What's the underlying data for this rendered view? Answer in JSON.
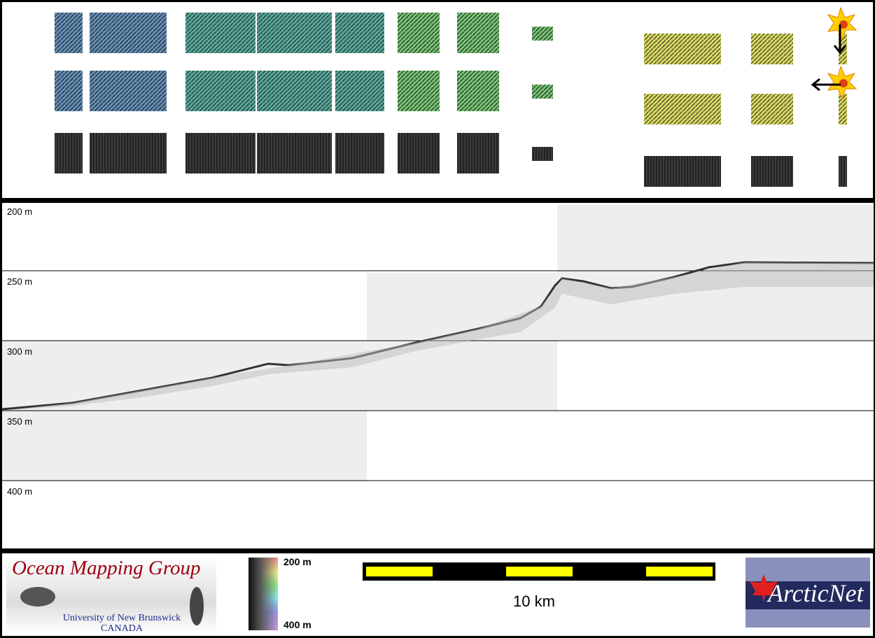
{
  "profile": {
    "depth_labels": [
      "200 m",
      "250 m",
      "300 m",
      "350 m",
      "400 m"
    ]
  },
  "legend": {
    "logo_title": "Ocean Mapping Group",
    "logo_subtitle": "University of New Brunswick",
    "logo_country": "CANADA",
    "colorbar_top": "200 m",
    "colorbar_bottom": "400 m",
    "scale_label": "10 km",
    "partner_logo": "ArcticNet"
  },
  "colors": {
    "scale_yellow": "#ffff00",
    "logo_red": "#a00010",
    "logo_blue": "#1a2a8a",
    "arctic_bg": "#222a5e"
  }
}
